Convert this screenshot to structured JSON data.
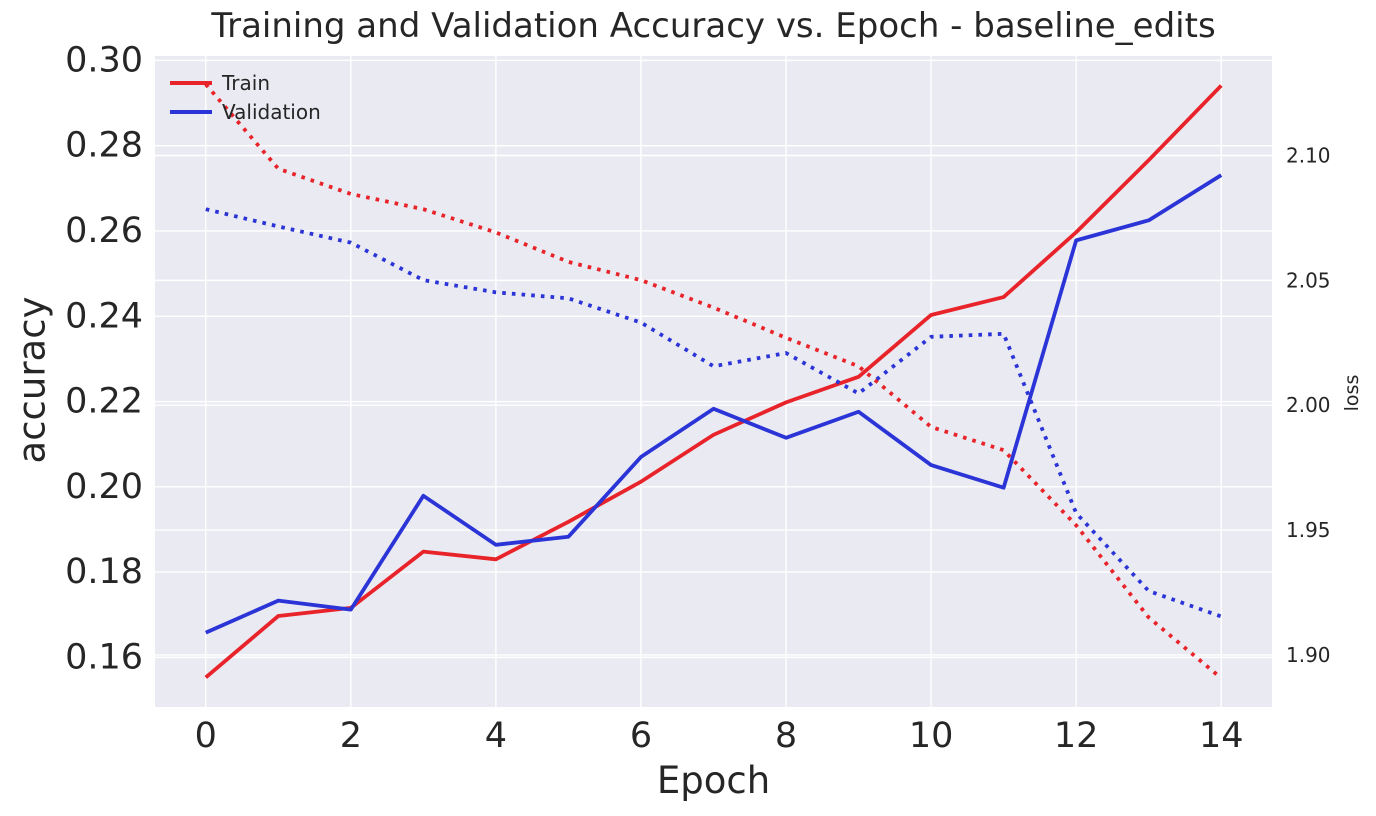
{
  "chart_data": {
    "type": "line",
    "title": "Training and Validation Accuracy vs. Epoch - baseline_edits",
    "xlabel": "Epoch",
    "ylabel_left": "accuracy",
    "ylabel_right": "loss",
    "x": [
      0,
      1,
      2,
      3,
      4,
      5,
      6,
      7,
      8,
      9,
      10,
      11,
      12,
      13,
      14
    ],
    "series": [
      {
        "name": "Train accuracy",
        "legend_label": "Train",
        "axis": "left",
        "style": "solid",
        "color": "#e8232a",
        "values": [
          0.1553,
          0.1697,
          0.1716,
          0.1848,
          0.183,
          0.1918,
          0.2012,
          0.2122,
          0.2198,
          0.2258,
          0.2403,
          0.2445,
          0.2597,
          0.2766,
          0.2941
        ]
      },
      {
        "name": "Validation accuracy",
        "legend_label": "Validation",
        "axis": "left",
        "style": "solid",
        "color": "#2b34d6",
        "values": [
          0.1658,
          0.1733,
          0.1712,
          0.1979,
          0.1864,
          0.1883,
          0.207,
          0.2183,
          0.2115,
          0.2176,
          0.2051,
          0.1998,
          0.2578,
          0.2625,
          0.2731
        ]
      },
      {
        "name": "Train loss",
        "legend_label": null,
        "axis": "right",
        "style": "dotted",
        "color": "#e8232a",
        "values": [
          2.1285,
          2.0947,
          2.0846,
          2.0785,
          2.0692,
          2.0574,
          2.0501,
          2.0391,
          2.027,
          2.0156,
          1.9913,
          1.982,
          1.9519,
          1.915,
          1.8907
        ]
      },
      {
        "name": "Validation loss",
        "legend_label": null,
        "axis": "right",
        "style": "dotted",
        "color": "#2b34d6",
        "values": [
          2.0785,
          2.0716,
          2.0651,
          2.0501,
          2.0452,
          2.0428,
          2.0331,
          2.0156,
          2.0209,
          2.0047,
          2.0274,
          2.0286,
          1.9568,
          1.9256,
          1.9154
        ]
      }
    ],
    "x_ticks": {
      "values": [
        0,
        2,
        4,
        6,
        8,
        10,
        12,
        14
      ],
      "labels": [
        "0",
        "2",
        "4",
        "6",
        "8",
        "10",
        "12",
        "14"
      ]
    },
    "y_ticks_left": {
      "values": [
        0.16,
        0.18,
        0.2,
        0.22,
        0.24,
        0.26,
        0.28,
        0.3
      ],
      "labels": [
        "0.16",
        "0.18",
        "0.20",
        "0.22",
        "0.24",
        "0.26",
        "0.28",
        "0.30"
      ]
    },
    "y_ticks_right": {
      "values": [
        1.9,
        1.95,
        2.0,
        2.05,
        2.1
      ],
      "labels": [
        "1.90",
        "1.95",
        "2.00",
        "2.05",
        "2.10"
      ]
    },
    "xlim": [
      -0.7,
      14.7
    ],
    "ylim_left": [
      0.14836,
      0.30104
    ],
    "ylim_right": [
      1.87915,
      2.13985
    ],
    "grid": true,
    "legend": {
      "position": "upper-left",
      "entries": [
        {
          "label": "Train",
          "color": "#e8232a"
        },
        {
          "label": "Validation",
          "color": "#2b34d6"
        }
      ]
    },
    "colors": {
      "plot_background": "#eaeaf2",
      "grid": "#ffffff",
      "figure_background": "#ffffff",
      "text": "#262626"
    }
  }
}
